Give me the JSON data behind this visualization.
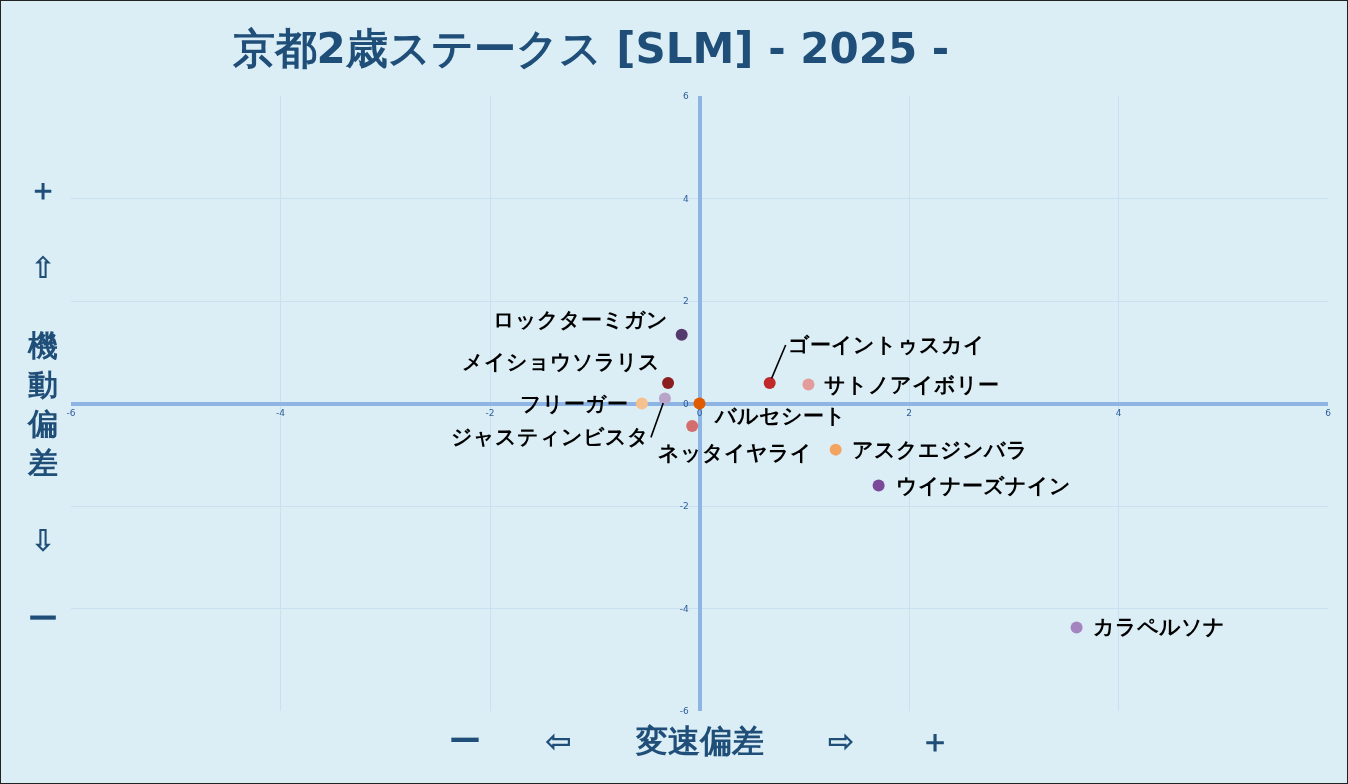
{
  "chart_data": {
    "type": "scatter",
    "title": "京都2歳ステークス [SLM] - 2025 -",
    "xlabel": "ー ⇦ 変速偏差 ⇨ ＋",
    "ylabel": "＋ ⇧ 機動偏差 ⇩ ー",
    "xlim": [
      -6,
      6
    ],
    "ylim": [
      -6,
      6
    ],
    "xticks": [
      -6,
      -4,
      -2,
      0,
      2,
      4,
      6
    ],
    "yticks": [
      -6,
      -4,
      -2,
      0,
      2,
      4,
      6
    ],
    "grid": true,
    "legend": false,
    "marker": "circle",
    "series": [
      {
        "name": "ロックターミガン",
        "color": "#553a6e",
        "x": [
          -0.17
        ],
        "values": [
          1.34
        ]
      },
      {
        "name": "メイショウソラリス",
        "color": "#8b1e1e",
        "x": [
          -0.3
        ],
        "values": [
          0.4
        ]
      },
      {
        "name": "フリーガー",
        "color": "#f6c18f",
        "x": [
          -0.55
        ],
        "values": [
          0
        ]
      },
      {
        "name": "ジャスティンビスタ",
        "color": "#b9a4c9",
        "x": [
          -0.33
        ],
        "values": [
          0.1
        ]
      },
      {
        "name": "バルセシート",
        "color": "#e05a00",
        "x": [
          0
        ],
        "values": [
          0
        ]
      },
      {
        "name": "ネッタイヤライ",
        "color": "#d46e6e",
        "x": [
          -0.07
        ],
        "values": [
          -0.44
        ]
      },
      {
        "name": "ゴーイントゥスカイ",
        "color": "#c0282a",
        "x": [
          0.67
        ],
        "values": [
          0.4
        ]
      },
      {
        "name": "サトノアイボリー",
        "color": "#e39b9b",
        "x": [
          1.04
        ],
        "values": [
          0.37
        ]
      },
      {
        "name": "アスクエジンバラ",
        "color": "#f3a460",
        "x": [
          1.3
        ],
        "values": [
          -0.9
        ]
      },
      {
        "name": "ウイナーズナイン",
        "color": "#7a4a99",
        "x": [
          1.71
        ],
        "values": [
          -1.6
        ]
      },
      {
        "name": "カラペルソナ",
        "color": "#a585bf",
        "x": [
          3.6
        ],
        "values": [
          -4.37
        ]
      }
    ]
  }
}
